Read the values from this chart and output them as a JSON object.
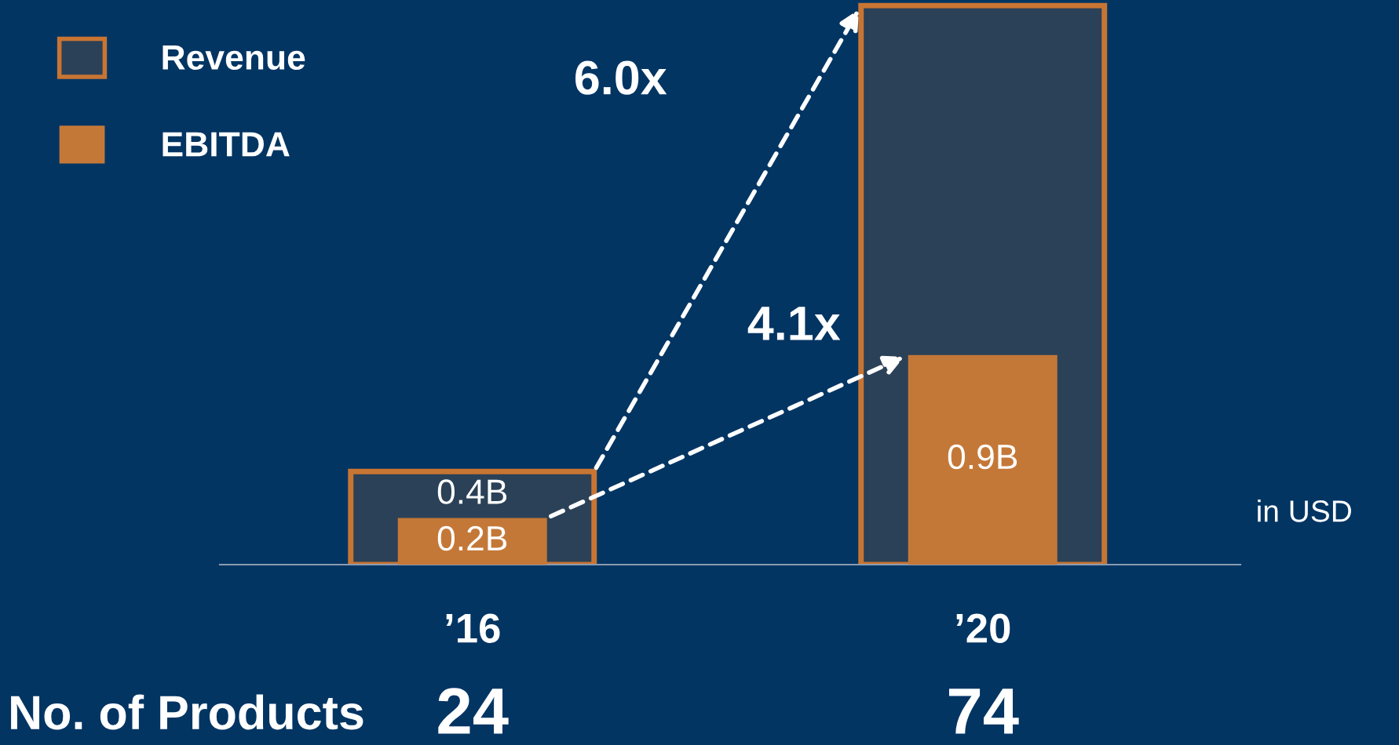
{
  "chart_data": {
    "type": "bar",
    "categories": [
      "’16",
      "’20"
    ],
    "series": [
      {
        "name": "Revenue",
        "color": "#c87533",
        "values": [
          0.4,
          2.4
        ],
        "value_labels": [
          "0.4B",
          null
        ]
      },
      {
        "name": "EBITDA",
        "color": "#c47838",
        "values": [
          0.2,
          0.9
        ],
        "value_labels": [
          "0.2B",
          "0.9B"
        ]
      }
    ],
    "annotations": [
      "6.0x",
      "4.1x",
      "in USD",
      "No. of Products",
      "24",
      "74"
    ],
    "legend": "top left",
    "grid": false
  }
}
